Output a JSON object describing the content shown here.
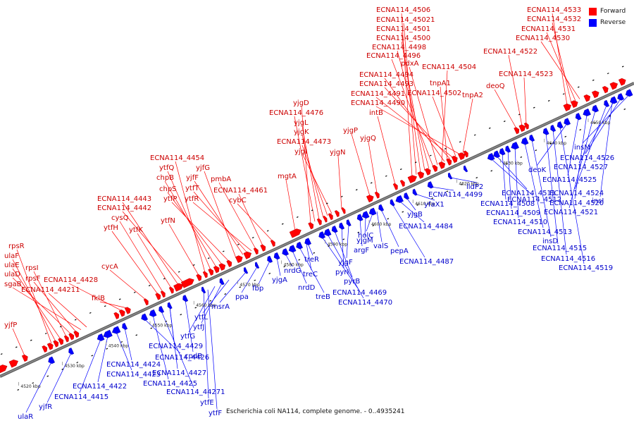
{
  "caption": "Escherichia coli NA114, complete genome. - 0..4935241",
  "legend": [
    {
      "label": "Forward",
      "color": "#ff0000"
    },
    {
      "label": "Reverse",
      "color": "#0000ff"
    }
  ],
  "colors": {
    "forward": "#ff0000",
    "reverse": "#0000ff",
    "backbone": "#888888"
  },
  "ticks": [
    "4520 kbp",
    "4530 kbp",
    "4540 kbp",
    "4550 kbp",
    "4560 kbp",
    "4570 kbp",
    "4580 kbp",
    "4590 kbp",
    "4600 kbp",
    "4610 kbp",
    "4620 kbp",
    "4630 kbp",
    "4640 kbp",
    "4650 kbp"
  ],
  "forward_labels": [
    "rpsR",
    "ulaF",
    "ulaE",
    "rpsI",
    "ulaD",
    "rpsF",
    "sgaB",
    "ECNA114_44211",
    "ECNA114_4428",
    "yjfP",
    "fklB",
    "cycA",
    "ytfH",
    "cysQ",
    "ytfK",
    "ECNA114_4443",
    "ECNA114_4442",
    "ytfN",
    "ECNA114_4454",
    "ytfQ",
    "chpB",
    "chpS",
    "ytfP",
    "yjfG",
    "yjfF",
    "ytfT",
    "ytfR",
    "pmbA",
    "ECNA114_4461",
    "cybC",
    "mgtA",
    "yjgD",
    "ECNA114_4476",
    "yjgL",
    "yjgK",
    "ECNA114_4473",
    "yjgI",
    "yjgN",
    "yjgP",
    "yjgQ",
    "ECNA114_4506",
    "ECNA114_45021",
    "ECNA114_4501",
    "ECNA114_4500",
    "ECNA114_4498",
    "ECNA114_4496",
    "pdxA",
    "ECNA114_4504",
    "ECNA114_4494",
    "tnpA1",
    "ECNA114_4493",
    "ECNA114_4491",
    "ECNA114_4502",
    "ECNA114_4490",
    "tnpA2",
    "intB",
    "deoQ",
    "ECNA114_4522",
    "ECNA114_4523",
    "ECNA114_4533",
    "ECNA114_4532",
    "ECNA114_4531",
    "ECNA114_4530"
  ],
  "reverse_labels": [
    "ulaR",
    "yjfR",
    "ECNA114_4415",
    "ECNA114_4422",
    "ECNA114_4423",
    "ECNA114_4424",
    "ECNA114_4426",
    "ECNA114_4425",
    "ECNA114_44271",
    "ECNA114_4427",
    "ECNA114_4429",
    "cpdB",
    "ytfE",
    "ytfF",
    "ytfG",
    "ytfJ",
    "ytfL",
    "msrA",
    "ppa",
    "fbp",
    "yjgA",
    "nrdG",
    "nrdD",
    "treB",
    "treC",
    "treR",
    "ECNA114_4469",
    "ECNA114_4470",
    "pyrB",
    "pyrI",
    "yjgF",
    "argF",
    "yjgM",
    "holC",
    "valS",
    "pepA",
    "ECNA114_4487",
    "ECNA114_4484",
    "yjgB",
    "yfaX1",
    "ECNA114_4499",
    "lldP2",
    "ECNA114_4512",
    "ECNA114_4511",
    "ECNA114_4508",
    "ECNA114_4509",
    "ECNA114_4510",
    "ECNA114_4513",
    "insD",
    "ECNA114_4515",
    "ECNA114_4516",
    "ECNA114_4519",
    "deoK",
    "ECNA114_4525",
    "ECNA114_4520",
    "ECNA114_4521",
    "ECNA114_4524",
    "ECNA114_4527",
    "ECNA114_4526",
    "insM",
    "insI"
  ]
}
